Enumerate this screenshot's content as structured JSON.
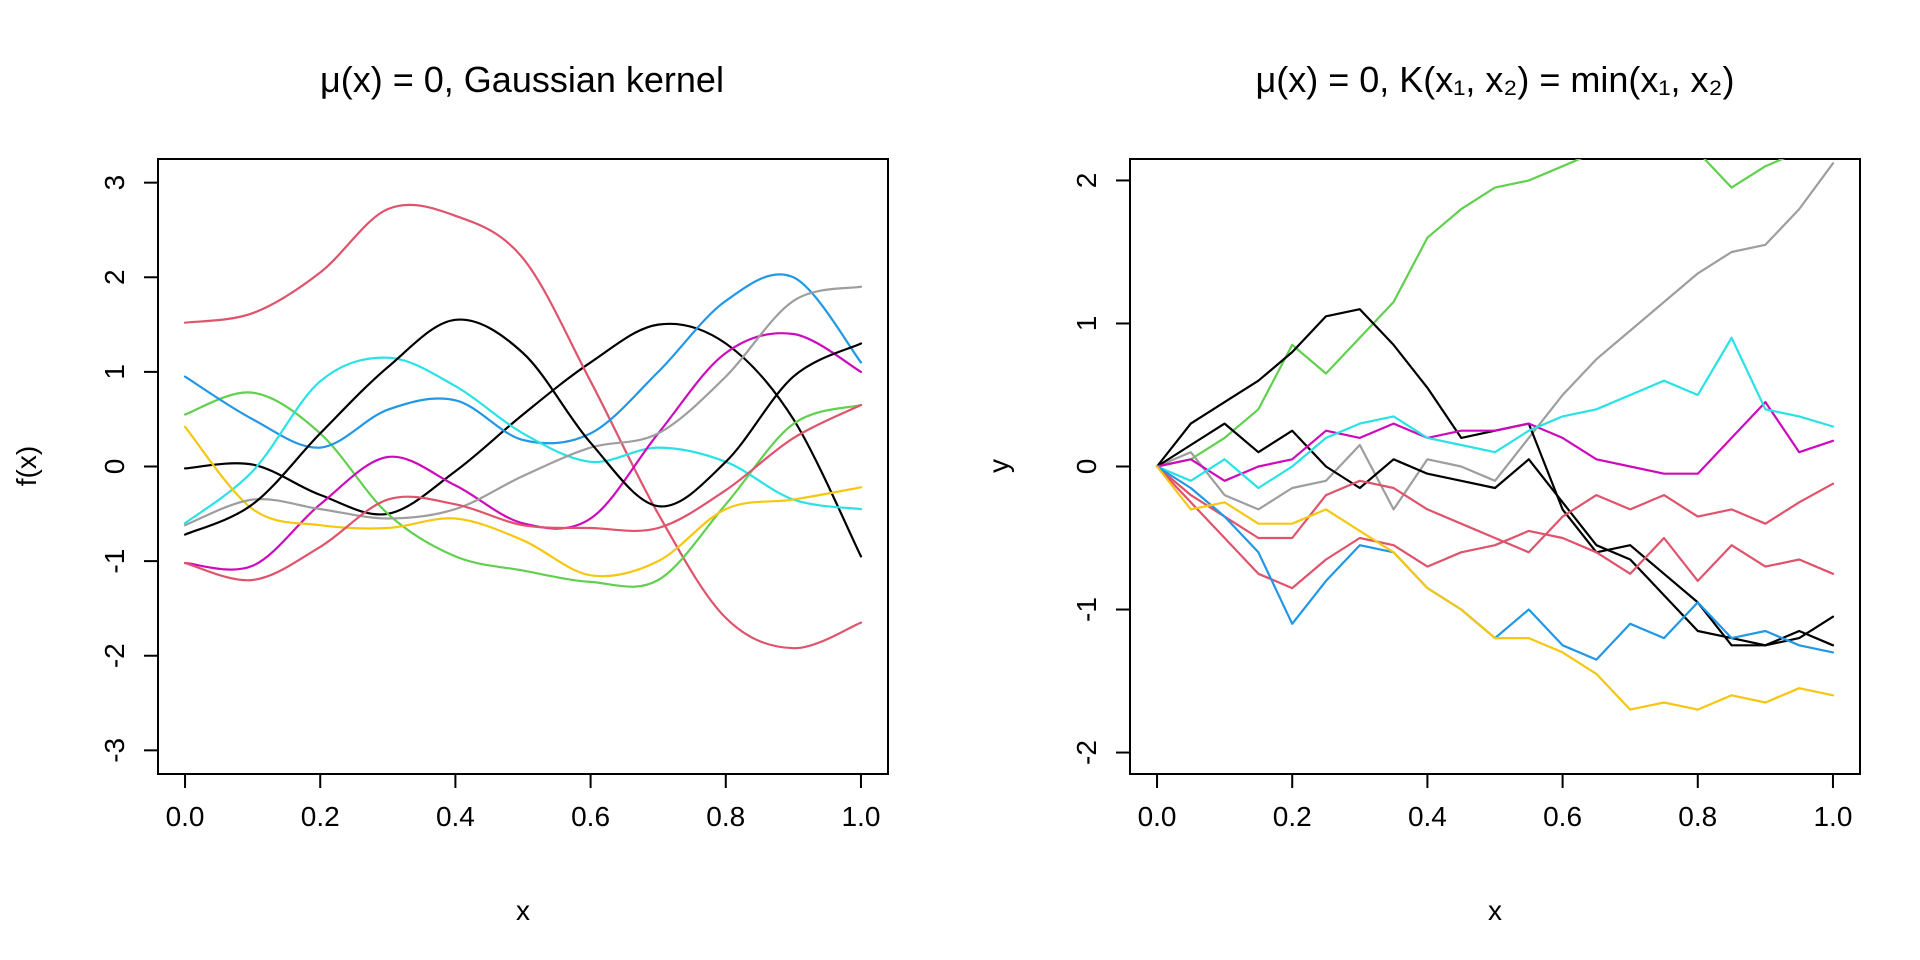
{
  "chart_data": [
    {
      "type": "line",
      "title": "μ(x) = 0, Gaussian kernel",
      "xlabel": "x",
      "ylabel": "f(x)",
      "xlim": [
        -0.04,
        1.04
      ],
      "ylim": [
        -3.25,
        3.25
      ],
      "xticks": [
        0,
        0.2,
        0.4,
        0.6,
        0.8,
        1.0
      ],
      "xtick_labels": [
        "0.0",
        "0.2",
        "0.4",
        "0.6",
        "0.8",
        "1.0"
      ],
      "yticks": [
        -3,
        -2,
        -1,
        0,
        1,
        2,
        3
      ],
      "ytick_labels": [
        "-3",
        "-2",
        "-1",
        "0",
        "1",
        "2",
        "3"
      ],
      "grid": false,
      "x": [
        0,
        0.1,
        0.2,
        0.3,
        0.4,
        0.5,
        0.6,
        0.7,
        0.8,
        0.9,
        1.0
      ],
      "series": [
        {
          "color": "#000000",
          "values": [
            -0.02,
            0.02,
            -0.3,
            -0.5,
            -0.05,
            0.55,
            1.1,
            1.5,
            1.3,
            0.5,
            -0.95
          ]
        },
        {
          "color": "#DF536B",
          "values": [
            1.52,
            1.62,
            2.05,
            2.72,
            2.65,
            2.2,
            0.9,
            -0.5,
            -1.6,
            -1.92,
            -1.65
          ]
        },
        {
          "color": "#61D04F",
          "values": [
            0.55,
            0.78,
            0.35,
            -0.5,
            -0.95,
            -1.1,
            -1.22,
            -1.2,
            -0.4,
            0.45,
            0.65
          ]
        },
        {
          "color": "#2297E6",
          "values": [
            0.95,
            0.5,
            0.2,
            0.6,
            0.7,
            0.28,
            0.35,
            1.0,
            1.75,
            2.0,
            1.1
          ]
        },
        {
          "color": "#28E2E5",
          "values": [
            -0.6,
            -0.05,
            0.9,
            1.15,
            0.85,
            0.35,
            0.05,
            0.2,
            0.05,
            -0.35,
            -0.45
          ]
        },
        {
          "color": "#CD0BBC",
          "values": [
            -1.02,
            -1.05,
            -0.4,
            0.1,
            -0.2,
            -0.6,
            -0.55,
            0.35,
            1.2,
            1.4,
            1.0
          ]
        },
        {
          "color": "#F5C710",
          "values": [
            0.42,
            -0.45,
            -0.62,
            -0.65,
            -0.55,
            -0.78,
            -1.15,
            -1.0,
            -0.45,
            -0.35,
            -0.22
          ]
        },
        {
          "color": "#9E9E9E",
          "values": [
            -0.62,
            -0.35,
            -0.45,
            -0.55,
            -0.45,
            -0.1,
            0.2,
            0.35,
            0.95,
            1.75,
            1.9
          ]
        },
        {
          "color": "#000000",
          "values": [
            -0.72,
            -0.4,
            0.35,
            1.05,
            1.55,
            1.2,
            0.25,
            -0.42,
            0.05,
            0.95,
            1.3
          ]
        },
        {
          "color": "#DF536B",
          "values": [
            -1.02,
            -1.2,
            -0.85,
            -0.35,
            -0.4,
            -0.62,
            -0.65,
            -0.65,
            -0.25,
            0.3,
            0.65
          ]
        }
      ]
    },
    {
      "type": "line",
      "title": "μ(x) = 0, K(x₁, x₂) = min(x₁, x₂)",
      "xlabel": "x",
      "ylabel": "y",
      "xlim": [
        -0.04,
        1.04
      ],
      "ylim": [
        -2.15,
        2.15
      ],
      "xticks": [
        0,
        0.2,
        0.4,
        0.6,
        0.8,
        1.0
      ],
      "xtick_labels": [
        "0.0",
        "0.2",
        "0.4",
        "0.6",
        "0.8",
        "1.0"
      ],
      "yticks": [
        -2,
        -1,
        0,
        1,
        2
      ],
      "ytick_labels": [
        "-2",
        "-1",
        "0",
        "1",
        "2"
      ],
      "grid": false,
      "x": [
        0,
        0.05,
        0.1,
        0.15,
        0.2,
        0.25,
        0.3,
        0.35,
        0.4,
        0.45,
        0.5,
        0.55,
        0.6,
        0.65,
        0.7,
        0.75,
        0.8,
        0.85,
        0.9,
        0.95,
        1.0
      ],
      "series": [
        {
          "color": "#61D04F",
          "values": [
            0,
            0.05,
            0.2,
            0.4,
            0.85,
            0.65,
            0.9,
            1.15,
            1.6,
            1.8,
            1.95,
            2.0,
            2.1,
            2.2,
            2.3,
            2.35,
            2.2,
            1.95,
            2.1,
            2.2,
            2.25
          ]
        },
        {
          "color": "#9E9E9E",
          "values": [
            0,
            0.1,
            -0.2,
            -0.3,
            -0.15,
            -0.1,
            0.15,
            -0.3,
            0.05,
            0.0,
            -0.1,
            0.2,
            0.5,
            0.75,
            0.95,
            1.15,
            1.35,
            1.5,
            1.55,
            1.8,
            2.12
          ]
        },
        {
          "color": "#000000",
          "values": [
            0,
            0.3,
            0.45,
            0.6,
            0.8,
            1.05,
            1.1,
            0.85,
            0.55,
            0.2,
            0.25,
            0.3,
            -0.3,
            -0.6,
            -0.55,
            -0.75,
            -0.95,
            -1.25,
            -1.25,
            -1.2,
            -1.05
          ]
        },
        {
          "color": "#000000",
          "values": [
            0,
            0.15,
            0.3,
            0.1,
            0.25,
            0.0,
            -0.15,
            0.05,
            -0.05,
            -0.1,
            -0.15,
            0.05,
            -0.25,
            -0.55,
            -0.65,
            -0.9,
            -1.15,
            -1.2,
            -1.25,
            -1.15,
            -1.25
          ]
        },
        {
          "color": "#CD0BBC",
          "values": [
            0,
            0.05,
            -0.1,
            0.0,
            0.05,
            0.25,
            0.2,
            0.3,
            0.2,
            0.25,
            0.25,
            0.3,
            0.2,
            0.05,
            0.0,
            -0.05,
            -0.05,
            0.2,
            0.45,
            0.1,
            0.18
          ]
        },
        {
          "color": "#28E2E5",
          "values": [
            0,
            -0.1,
            0.05,
            -0.15,
            0.0,
            0.2,
            0.3,
            0.35,
            0.2,
            0.15,
            0.1,
            0.25,
            0.35,
            0.4,
            0.5,
            0.6,
            0.5,
            0.9,
            0.4,
            0.35,
            0.28
          ]
        },
        {
          "color": "#DF536B",
          "values": [
            0,
            -0.2,
            -0.35,
            -0.5,
            -0.5,
            -0.2,
            -0.1,
            -0.15,
            -0.3,
            -0.4,
            -0.5,
            -0.6,
            -0.35,
            -0.2,
            -0.3,
            -0.2,
            -0.35,
            -0.3,
            -0.4,
            -0.25,
            -0.12
          ]
        },
        {
          "color": "#DF536B",
          "values": [
            0,
            -0.25,
            -0.5,
            -0.75,
            -0.85,
            -0.65,
            -0.5,
            -0.55,
            -0.7,
            -0.6,
            -0.55,
            -0.45,
            -0.5,
            -0.6,
            -0.75,
            -0.5,
            -0.8,
            -0.55,
            -0.7,
            -0.65,
            -0.75
          ]
        },
        {
          "color": "#2297E6",
          "values": [
            0,
            -0.15,
            -0.35,
            -0.6,
            -1.1,
            -0.8,
            -0.55,
            -0.6,
            -0.85,
            -1.0,
            -1.2,
            -1.0,
            -1.25,
            -1.35,
            -1.1,
            -1.2,
            -0.95,
            -1.2,
            -1.15,
            -1.25,
            -1.3
          ]
        },
        {
          "color": "#F5C710",
          "values": [
            0,
            -0.3,
            -0.25,
            -0.4,
            -0.4,
            -0.3,
            -0.45,
            -0.6,
            -0.85,
            -1.0,
            -1.2,
            -1.2,
            -1.3,
            -1.45,
            -1.7,
            -1.65,
            -1.7,
            -1.6,
            -1.65,
            -1.55,
            -1.6
          ]
        }
      ]
    }
  ]
}
